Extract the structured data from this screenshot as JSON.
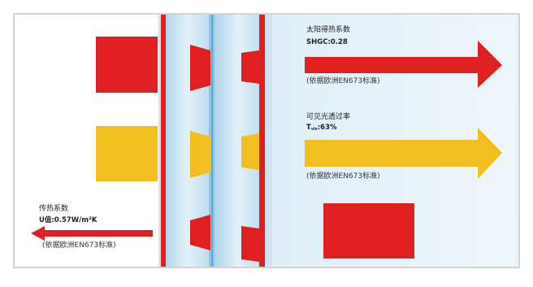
{
  "solar": {
    "title": "太阳得热系数",
    "value": "SHGC:0.28",
    "note": "(依据欧洲EN673标准)"
  },
  "visible": {
    "title": "可见光透过率",
    "value_prefix": "T",
    "value_sub": "vis",
    "value_suffix": ":63%",
    "note": "(依据欧洲EN673标准)"
  },
  "uvalue": {
    "title": "传热系数",
    "value": "U值:0.57W/m²K",
    "note": "(依据欧洲EN673标准)"
  },
  "colors": {
    "red": "#e02020",
    "yellow": "#f2c01e",
    "glass": "#cfe6f3",
    "border": "#9a9a9a"
  }
}
